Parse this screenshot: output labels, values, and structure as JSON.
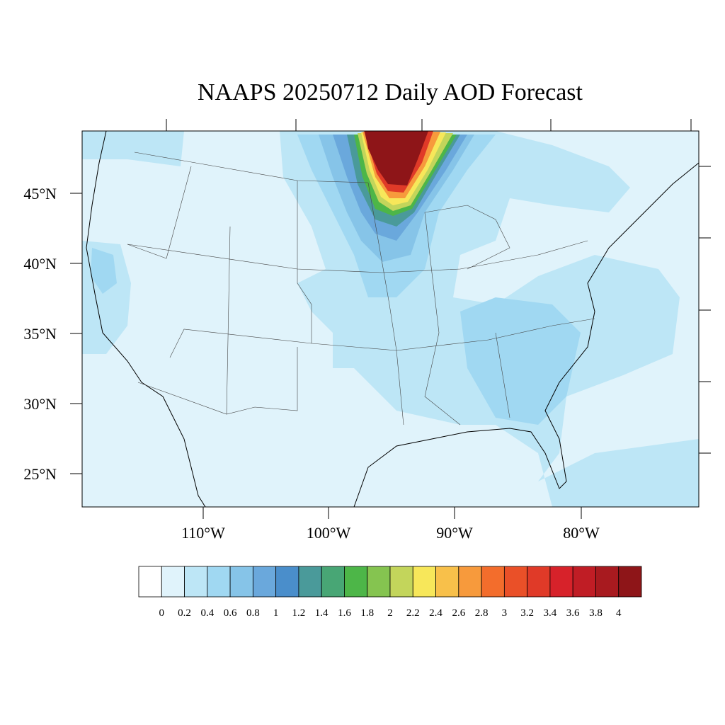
{
  "title": "NAAPS 20250712 Daily AOD Forecast",
  "lat_labels": [
    "45°N",
    "40°N",
    "35°N",
    "30°N",
    "25°N"
  ],
  "lon_labels": [
    "110°W",
    "100°W",
    "90°W",
    "80°W"
  ],
  "colorbar": {
    "labels": [
      "0",
      "0.2",
      "0.4",
      "0.6",
      "0.8",
      "1",
      "1.2",
      "1.4",
      "1.6",
      "1.8",
      "2",
      "2.2",
      "2.4",
      "2.6",
      "2.8",
      "3",
      "3.2",
      "3.4",
      "3.6",
      "3.8",
      "4"
    ],
    "colors": [
      "#ffffff",
      "#e0f3fb",
      "#bde6f6",
      "#a0d8f2",
      "#86c4e8",
      "#6aa8dc",
      "#4a8ecb",
      "#4a9a9a",
      "#48a675",
      "#4db648",
      "#85c450",
      "#c3d55b",
      "#f7e75a",
      "#f8c04a",
      "#f79a3c",
      "#f36d2c",
      "#ea5028",
      "#e03a28",
      "#d7222a",
      "#c01d25",
      "#a81a1f",
      "#8e1518"
    ]
  }
}
